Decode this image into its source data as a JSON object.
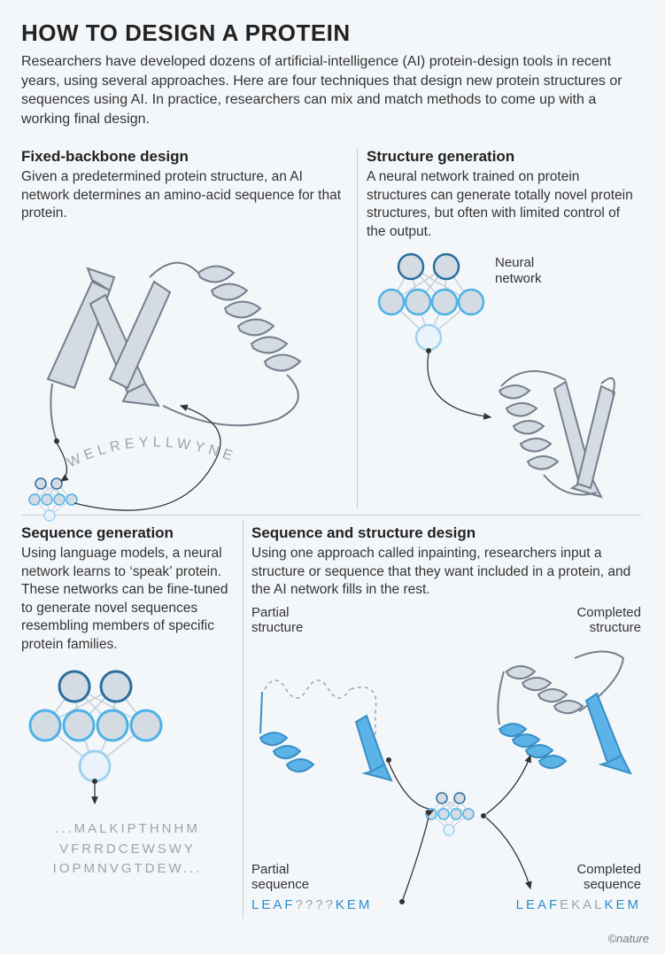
{
  "title": "HOW TO DESIGN A PROTEIN",
  "intro": "Researchers have developed dozens of artificial-intelligence (AI) protein-design tools in recent years, using several approaches. Here are four techniques that design new protein structures or sequences using AI. In practice, researchers can mix and match methods to come up with a working final design.",
  "credit": "©nature",
  "colors": {
    "bg": "#f4f7fa",
    "text": "#333333",
    "title": "#222222",
    "divider": "#a8b2bd",
    "seq_grey": "#9aa4ae",
    "seq_blue": "#2a8cc9",
    "protein_fill": "#d4dbe3",
    "protein_stroke": "#747f8c",
    "nn_fill": "#d4dbe3",
    "nn_stroke_dark": "#2a6f9e",
    "nn_stroke_light": "#4db2e5",
    "nn_line": "#c5ced8",
    "accent_blue_fill": "#5bb3e8",
    "accent_blue_stroke": "#3a8fc5"
  },
  "sections": {
    "tl": {
      "title": "Fixed-backbone design",
      "body": "Given a predetermined protein structure, an AI network determines an amino-acid sequence for that protein.",
      "sequence": "WELREYLLWYNE..."
    },
    "tr": {
      "title": "Structure generation",
      "body": "A neural network trained on protein structures can generate totally novel protein structures, but often with limited control of the output.",
      "nn_label": "Neural network"
    },
    "bl": {
      "title": "Sequence generation",
      "body": "Using language models, a neural network learns to ‘speak’ protein. These networks can be fine-tuned to generate novel sequences resembling members of specific protein families.",
      "seq_line1": "...MALKIPTHNHM",
      "seq_line2": "VFRRDCEWSWY",
      "seq_line3": "IOPMNVGTDEW..."
    },
    "br": {
      "title": "Sequence and structure design",
      "body": "Using one approach called inpainting, researchers input a structure or sequence that they want included in a protein, and the AI network fills in the rest.",
      "label_partial_struct": "Partial structure",
      "label_completed_struct": "Completed structure",
      "label_partial_seq": "Partial sequence",
      "label_completed_seq": "Completed sequence",
      "partial_seq_known": "LEAF",
      "partial_seq_unknown": "????",
      "partial_seq_tail": "KEM",
      "completed_seq_known1": "LEAF",
      "completed_seq_fill": "EKAL",
      "completed_seq_known2": "KEM"
    }
  }
}
